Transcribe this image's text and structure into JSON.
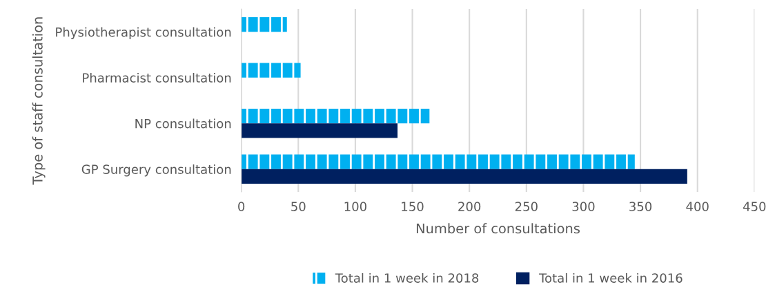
{
  "chart_data": {
    "type": "bar",
    "orientation": "horizontal",
    "xlabel": "Number of consultations",
    "ylabel": "Type of staff consultation",
    "categories": [
      "Physiotherapist consultation",
      "Pharmacist consultation",
      "NP consultation",
      "GP Surgery consultation"
    ],
    "series": [
      {
        "name": "Total in 1 week in 2018",
        "color": "#00b0f0",
        "values": [
          40,
          52,
          165,
          345
        ]
      },
      {
        "name": "Total in 1 week in 2016",
        "color": "#002060",
        "values": [
          null,
          null,
          137,
          391
        ]
      }
    ],
    "xlim": [
      0,
      450
    ],
    "xticks": [
      0,
      50,
      100,
      150,
      200,
      250,
      300,
      350,
      400,
      450
    ],
    "grid": "x",
    "legend": "bottom"
  }
}
